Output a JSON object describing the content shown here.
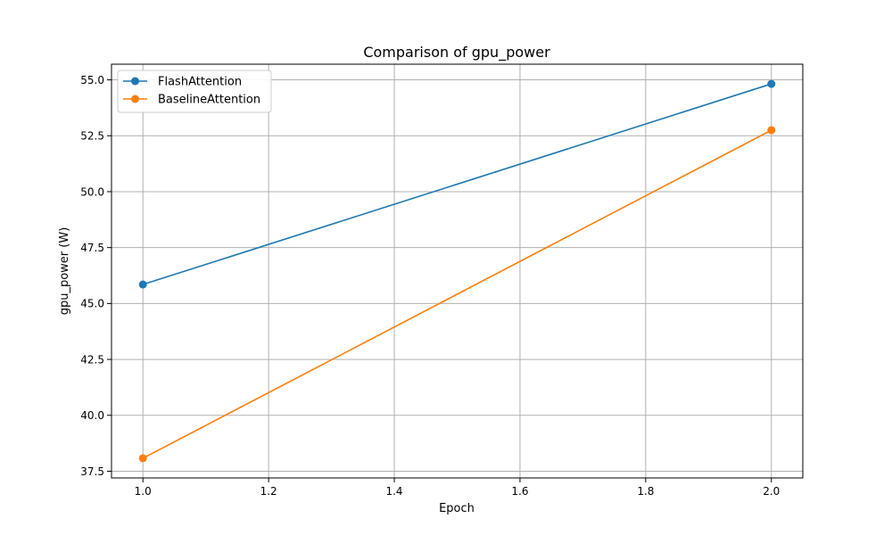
{
  "chart_data": {
    "type": "line",
    "title": "Comparison of gpu_power",
    "xlabel": "Epoch",
    "ylabel": "gpu_power (W)",
    "xlim": [
      0.95,
      2.05
    ],
    "ylim": [
      37.2,
      55.7
    ],
    "xticks": [
      1.0,
      1.2,
      1.4,
      1.6,
      1.8,
      2.0
    ],
    "xtick_labels": [
      "1.0",
      "1.2",
      "1.4",
      "1.6",
      "1.8",
      "2.0"
    ],
    "yticks": [
      37.5,
      40.0,
      42.5,
      45.0,
      47.5,
      50.0,
      52.5,
      55.0
    ],
    "ytick_labels": [
      "37.5",
      "40.0",
      "42.5",
      "45.0",
      "47.5",
      "50.0",
      "52.5",
      "55.0"
    ],
    "grid": true,
    "legend_position": "top-left",
    "x": [
      1.0,
      2.0
    ],
    "series": [
      {
        "name": "FlashAttention",
        "values": [
          45.85,
          54.82
        ],
        "color": "#1f77b4",
        "marker": "circle"
      },
      {
        "name": "BaselineAttention",
        "values": [
          38.08,
          52.75
        ],
        "color": "#ff7f0e",
        "marker": "circle"
      }
    ]
  }
}
